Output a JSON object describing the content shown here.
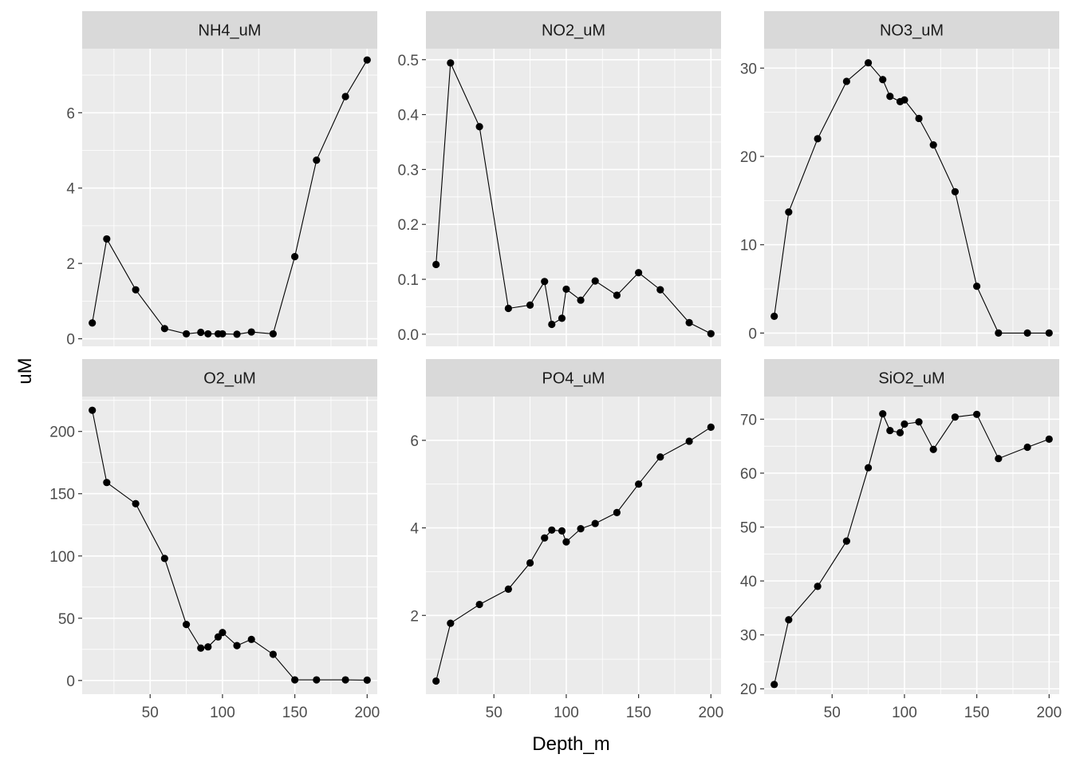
{
  "chart_data": {
    "type": "line",
    "layout": "facet_wrap",
    "xlabel": "Depth_m",
    "ylabel": "uM",
    "grid": true,
    "xlim": [
      3,
      207
    ],
    "xticks": [
      50,
      100,
      150,
      200
    ],
    "xminor": [
      25,
      75,
      125,
      175
    ],
    "panels": [
      {
        "title": "NH4_uM",
        "ylim": [
          -0.2,
          7.7
        ],
        "yticks": [
          0,
          2,
          4,
          6
        ],
        "x": [
          10,
          20,
          40,
          60,
          75,
          85,
          90,
          97,
          100,
          110,
          120,
          135,
          150,
          165,
          185,
          200
        ],
        "y": [
          0.42,
          2.65,
          1.3,
          0.27,
          0.13,
          0.17,
          0.13,
          0.13,
          0.13,
          0.12,
          0.18,
          0.13,
          2.18,
          4.74,
          6.43,
          7.4
        ]
      },
      {
        "title": "NO2_uM",
        "ylim": [
          -0.022,
          0.52
        ],
        "yticks": [
          0.0,
          0.1,
          0.2,
          0.3,
          0.4,
          0.5
        ],
        "ytick_labels": [
          "0.0",
          "0.1",
          "0.2",
          "0.3",
          "0.4",
          "0.5"
        ],
        "x": [
          10,
          20,
          40,
          60,
          75,
          85,
          90,
          97,
          100,
          110,
          120,
          135,
          150,
          165,
          185,
          200
        ],
        "y": [
          0.127,
          0.494,
          0.378,
          0.047,
          0.053,
          0.096,
          0.018,
          0.029,
          0.082,
          0.062,
          0.097,
          0.071,
          0.112,
          0.081,
          0.021,
          0.001
        ]
      },
      {
        "title": "NO3_uM",
        "ylim": [
          -1.5,
          32.2
        ],
        "yticks": [
          0,
          10,
          20,
          30
        ],
        "x": [
          10,
          20,
          40,
          60,
          75,
          85,
          90,
          97,
          100,
          110,
          120,
          135,
          150,
          165,
          185,
          200
        ],
        "y": [
          1.9,
          13.7,
          22.0,
          28.5,
          30.6,
          28.7,
          26.8,
          26.2,
          26.4,
          24.3,
          21.3,
          16.0,
          5.3,
          0.0,
          0.0,
          0.0
        ]
      },
      {
        "title": "O2_uM",
        "ylim": [
          -11,
          228
        ],
        "yticks": [
          0,
          50,
          100,
          150,
          200
        ],
        "x": [
          10,
          20,
          40,
          60,
          75,
          85,
          90,
          97,
          100,
          110,
          120,
          135,
          150,
          165,
          185,
          200
        ],
        "y": [
          217,
          159,
          142,
          98,
          45,
          26,
          27,
          35,
          38.5,
          28,
          33,
          21,
          0.5,
          0.5,
          0.5,
          0.3
        ]
      },
      {
        "title": "PO4_uM",
        "ylim": [
          0.2,
          7.0
        ],
        "yticks": [
          2,
          4,
          6
        ],
        "x": [
          10,
          20,
          40,
          60,
          75,
          85,
          90,
          97,
          100,
          110,
          120,
          135,
          150,
          165,
          185,
          200
        ],
        "y": [
          0.5,
          1.82,
          2.25,
          2.6,
          3.2,
          3.77,
          3.95,
          3.93,
          3.68,
          3.98,
          4.1,
          4.35,
          5.0,
          5.62,
          5.98,
          6.3
        ]
      },
      {
        "title": "SiO2_uM",
        "ylim": [
          19.0,
          74.2
        ],
        "yticks": [
          20,
          30,
          40,
          50,
          60,
          70
        ],
        "x": [
          10,
          20,
          40,
          60,
          75,
          85,
          90,
          97,
          100,
          110,
          120,
          135,
          150,
          165,
          185,
          200
        ],
        "y": [
          20.8,
          32.8,
          39.0,
          47.4,
          61.0,
          71.0,
          67.9,
          67.5,
          69.1,
          69.5,
          64.4,
          70.4,
          70.9,
          62.7,
          64.8,
          66.3
        ]
      }
    ]
  }
}
